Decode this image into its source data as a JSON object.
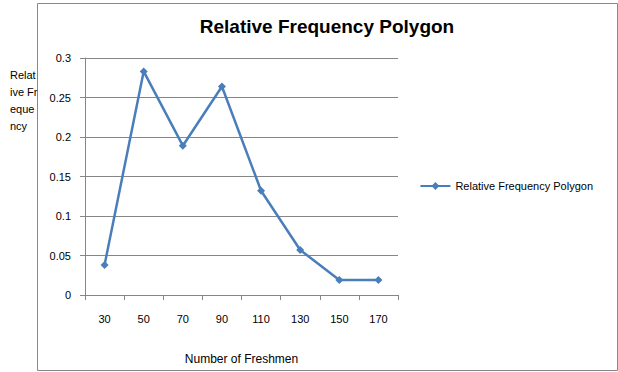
{
  "chart_data": {
    "type": "line",
    "title": "Relative Frequency Polygon",
    "x_label": "Number of Freshmen",
    "y_label": "Relative Frequency",
    "categories": [
      "30",
      "50",
      "70",
      "90",
      "110",
      "130",
      "150",
      "170"
    ],
    "series": [
      {
        "name": "Relative Frequency Polygon",
        "color": "#4a7ebb",
        "marker": "diamond",
        "values": [
          0.038,
          0.283,
          0.189,
          0.264,
          0.132,
          0.057,
          0.019,
          0.019
        ]
      }
    ],
    "ylim": [
      0,
      0.3
    ],
    "yticks": [
      0,
      0.05,
      0.1,
      0.15,
      0.2,
      0.25,
      0.3
    ],
    "grid": true,
    "legend": "right"
  }
}
